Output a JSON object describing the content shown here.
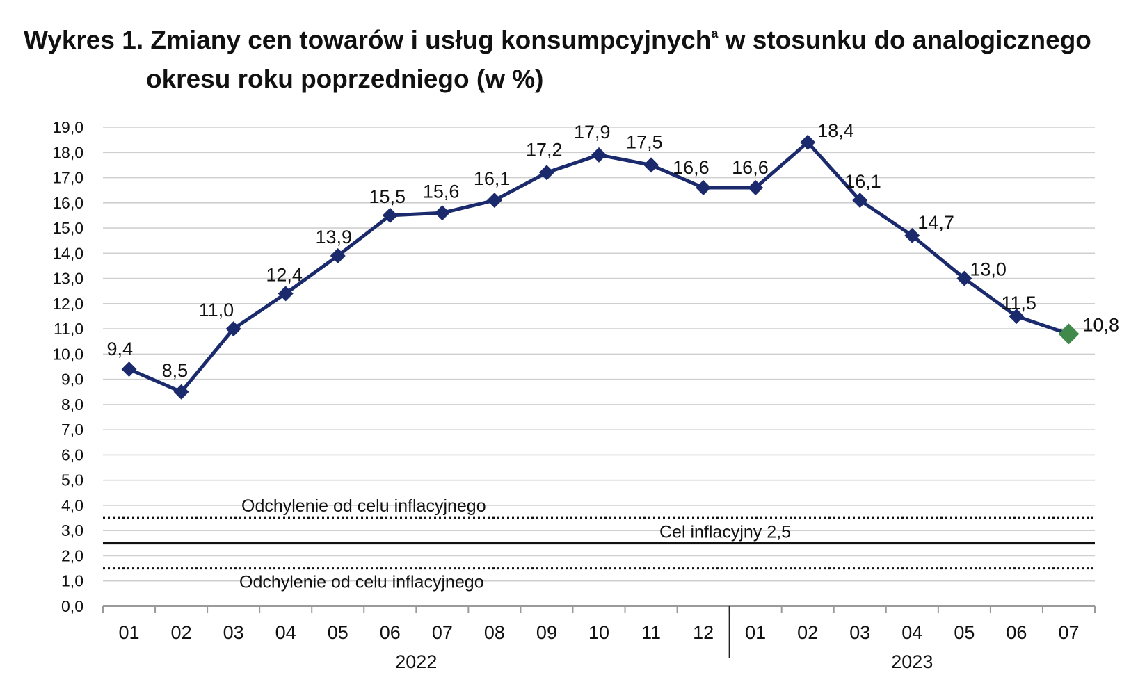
{
  "title": {
    "prefix": "Wykres 1.",
    "main": "Zmiany cen towarów i usług konsumpcyjnych",
    "sup": "a",
    "rest": "w stosunku do analogicznego",
    "line2": "okresu roku poprzedniego (w %)"
  },
  "chart_data": {
    "type": "line",
    "categories": [
      "01",
      "02",
      "03",
      "04",
      "05",
      "06",
      "07",
      "08",
      "09",
      "10",
      "11",
      "12",
      "01",
      "02",
      "03",
      "04",
      "05",
      "06",
      "07"
    ],
    "years": [
      {
        "label": "2022",
        "from": 0,
        "to": 11
      },
      {
        "label": "2023",
        "from": 12,
        "to": 18
      }
    ],
    "series": [
      {
        "values": [
          9.4,
          8.5,
          11.0,
          12.4,
          13.9,
          15.5,
          15.6,
          16.1,
          17.2,
          17.9,
          17.5,
          16.6,
          16.6,
          18.4,
          16.1,
          14.7,
          13.0,
          11.5,
          10.8
        ],
        "labels": [
          "9,4",
          "8,5",
          "11,0",
          "12,4",
          "13,9",
          "15,5",
          "15,6",
          "16,1",
          "17,2",
          "17,9",
          "17,5",
          "16,6",
          "16,6",
          "18,4",
          "16,1",
          "14,7",
          "13,0",
          "11,5",
          "10,8"
        ],
        "color": "#1a2a6c",
        "last_point_color": "#3f8a4a"
      }
    ],
    "y_ticks": [
      "0,0",
      "1,0",
      "2,0",
      "3,0",
      "4,0",
      "5,0",
      "6,0",
      "7,0",
      "8,0",
      "9,0",
      "10,0",
      "11,0",
      "12,0",
      "13,0",
      "14,0",
      "15,0",
      "16,0",
      "17,0",
      "18,0",
      "19,0"
    ],
    "ylim": [
      0,
      19
    ],
    "reference_lines": [
      {
        "value": 2.5,
        "style": "solid",
        "label": "Cel inflacyjny 2,5"
      },
      {
        "value": 3.5,
        "style": "dotted",
        "label": "Odchylenie od celu inflacyjnego"
      },
      {
        "value": 1.5,
        "style": "dotted",
        "label": "Odchylenie od celu inflacyjnego"
      }
    ],
    "grid": true,
    "xlabel": "",
    "ylabel": ""
  }
}
